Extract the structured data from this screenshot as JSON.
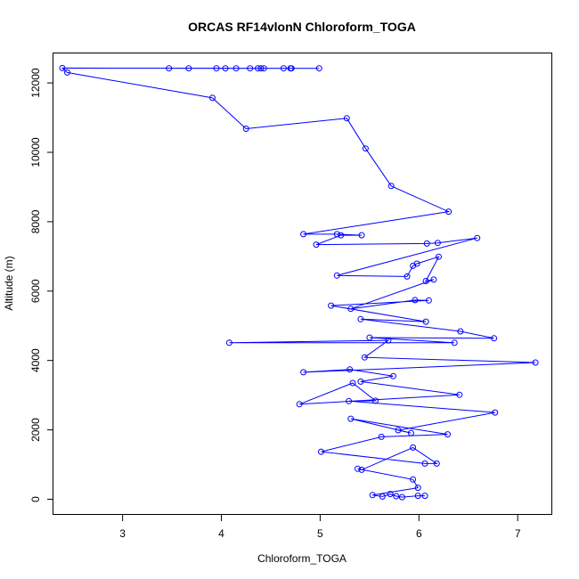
{
  "chart_data": {
    "type": "line",
    "title": "ORCAS RF14vlonN Chloroform_TOGA",
    "xlabel": "Chloroform_TOGA",
    "ylabel": "Altitude (m)",
    "xlim": [
      2.3,
      7.35
    ],
    "ylim": [
      -450,
      12850
    ],
    "xticks": [
      3,
      4,
      5,
      6,
      7
    ],
    "yticks": [
      0,
      2000,
      4000,
      6000,
      8000,
      10000,
      12000
    ],
    "grid": false,
    "markers": "open-circle",
    "color": "#0000ff",
    "series": [
      {
        "x": [
          6.06,
          5.99,
          5.83,
          5.77,
          5.71,
          5.63,
          5.53,
          5.99,
          5.94,
          5.38,
          5.42,
          5.94,
          6.18,
          6.06,
          5.01,
          5.62,
          6.29,
          5.31,
          5.92,
          5.79,
          6.77,
          5.29,
          5.56,
          5.33,
          4.79,
          6.41,
          5.41,
          5.74,
          5.3,
          4.83,
          7.18,
          5.45,
          5.69,
          4.08,
          6.36,
          5.5,
          6.76,
          6.42,
          5.41,
          6.07,
          5.11,
          6.1,
          5.96,
          5.31,
          6.15,
          6.07,
          6.2,
          5.98,
          5.94,
          5.88,
          5.17,
          6.59,
          6.19,
          6.08,
          4.96,
          5.21,
          5.42,
          5.17,
          4.83,
          6.3,
          5.72,
          5.46,
          5.27,
          4.25,
          3.91,
          2.44,
          2.39,
          4.99,
          4.7,
          4.63,
          4.43,
          4.4,
          4.37,
          4.29,
          4.15,
          4.04,
          3.95,
          3.67,
          3.47,
          4.71
        ],
        "y": [
          100,
          100,
          60,
          90,
          150,
          80,
          120,
          330,
          570,
          880,
          850,
          1490,
          1030,
          1030,
          1370,
          1800,
          1870,
          2320,
          1910,
          1990,
          2500,
          2830,
          2840,
          3350,
          2740,
          3010,
          3390,
          3550,
          3740,
          3660,
          3940,
          4090,
          4580,
          4510,
          4510,
          4660,
          4640,
          4840,
          5190,
          5120,
          5580,
          5730,
          5740,
          5490,
          6330,
          6290,
          6990,
          6790,
          6730,
          6420,
          6450,
          7530,
          7390,
          7370,
          7340,
          7610,
          7610,
          7640,
          7640,
          8290,
          9030,
          10110,
          10980,
          10680,
          11570,
          12300,
          12430,
          12420,
          12420,
          12420,
          12420,
          12420,
          12420,
          12420,
          12420,
          12420,
          12420,
          12420,
          12420,
          12420
        ]
      }
    ]
  }
}
